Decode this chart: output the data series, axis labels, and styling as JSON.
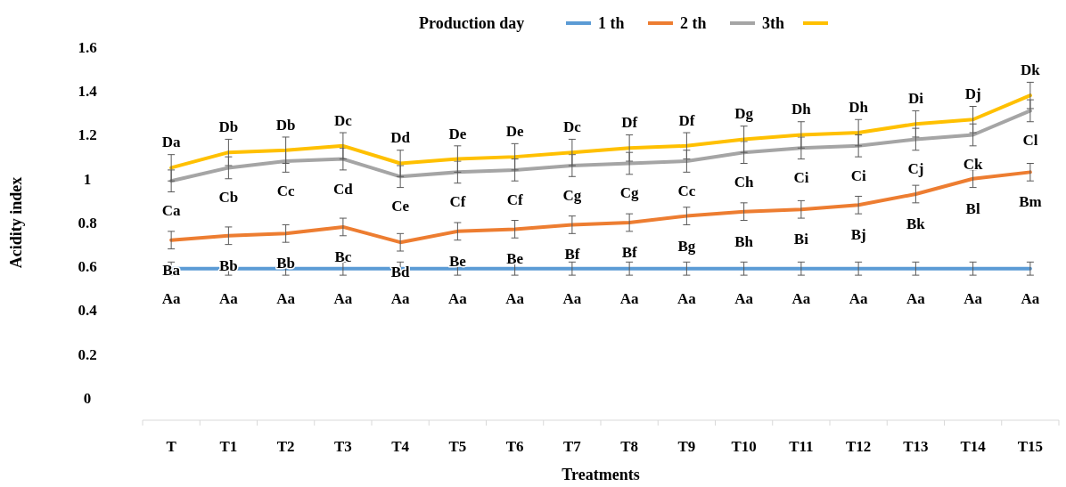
{
  "chart_data": {
    "type": "line",
    "xlabel": "Treatments",
    "ylabel": "Acidity index",
    "legend_title": "Production day",
    "legend": "top",
    "grid": false,
    "marker": "none",
    "categories": [
      "T",
      "T1",
      "T2",
      "T3",
      "T4",
      "T5",
      "T6",
      "T7",
      "T8",
      "T9",
      "T10",
      "T11",
      "T12",
      "T13",
      "T14",
      "T15"
    ],
    "ylim": [
      0,
      1.6
    ],
    "yticks": [
      0,
      0.2,
      0.4,
      0.6,
      0.8,
      1,
      1.2,
      1.4,
      1.6
    ],
    "series": [
      {
        "name": "1 th",
        "color": "#5b9bd5",
        "values": [
          0.59,
          0.59,
          0.59,
          0.59,
          0.59,
          0.59,
          0.59,
          0.59,
          0.59,
          0.59,
          0.59,
          0.59,
          0.59,
          0.59,
          0.59,
          0.59
        ],
        "errors": [
          0.03,
          0.03,
          0.03,
          0.03,
          0.03,
          0.03,
          0.03,
          0.03,
          0.03,
          0.03,
          0.03,
          0.03,
          0.03,
          0.03,
          0.03,
          0.03
        ],
        "value_labels": [
          "Aa",
          "Aa",
          "Aa",
          "Aa",
          "Aa",
          "Aa",
          "Aa",
          "Aa",
          "Aa",
          "Aa",
          "Aa",
          "Aa",
          "Aa",
          "Aa",
          "Aa",
          "Aa"
        ]
      },
      {
        "name": "2 th",
        "color": "#ed7d31",
        "values": [
          0.72,
          0.74,
          0.75,
          0.78,
          0.71,
          0.76,
          0.77,
          0.79,
          0.8,
          0.83,
          0.85,
          0.86,
          0.88,
          0.93,
          1.0,
          1.03
        ],
        "errors": [
          0.04,
          0.04,
          0.04,
          0.04,
          0.04,
          0.04,
          0.04,
          0.04,
          0.04,
          0.04,
          0.04,
          0.04,
          0.04,
          0.04,
          0.04,
          0.04
        ],
        "value_labels": [
          "Ba",
          "Bb",
          "Bb",
          "Bc",
          "Bd",
          "Be",
          "Be",
          "Bf",
          "Bf",
          "Bg",
          "Bh",
          "Bi",
          "Bj",
          "Bk",
          "Bl",
          "Bm"
        ]
      },
      {
        "name": "3th",
        "color": "#a5a5a5",
        "values": [
          0.99,
          1.05,
          1.08,
          1.09,
          1.01,
          1.03,
          1.04,
          1.06,
          1.07,
          1.08,
          1.12,
          1.14,
          1.15,
          1.18,
          1.2,
          1.31
        ],
        "errors": [
          0.05,
          0.05,
          0.05,
          0.05,
          0.05,
          0.05,
          0.05,
          0.05,
          0.05,
          0.05,
          0.05,
          0.05,
          0.05,
          0.05,
          0.05,
          0.05
        ],
        "value_labels": [
          "Ca",
          "Cb",
          "Cc",
          "Cd",
          "Ce",
          "Cf",
          "Cf",
          "Cg",
          "Cg",
          "Cc",
          "Ch",
          "Ci",
          "Ci",
          "Cj",
          "Ck",
          "Cl"
        ]
      },
      {
        "color": "#ffc000",
        "values": [
          1.05,
          1.12,
          1.13,
          1.15,
          1.07,
          1.09,
          1.1,
          1.12,
          1.14,
          1.15,
          1.18,
          1.2,
          1.21,
          1.25,
          1.27,
          1.38
        ],
        "errors": [
          0.06,
          0.06,
          0.06,
          0.06,
          0.06,
          0.06,
          0.06,
          0.06,
          0.06,
          0.06,
          0.06,
          0.06,
          0.06,
          0.06,
          0.06,
          0.06
        ],
        "value_labels": [
          "Da",
          "Db",
          "Db",
          "Dc",
          "Dd",
          "De",
          "De",
          "Dc",
          "Df",
          "Df",
          "Dg",
          "Dh",
          "Dh",
          "Di",
          "Dj",
          "Dk"
        ]
      }
    ]
  }
}
